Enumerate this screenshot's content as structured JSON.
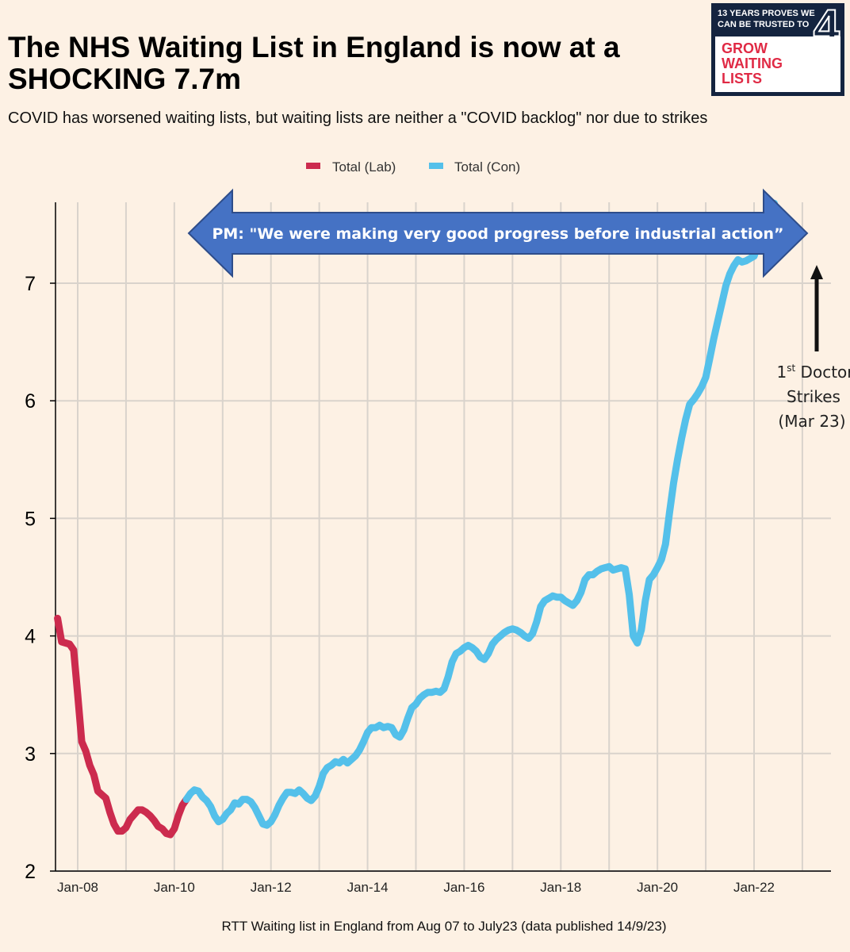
{
  "header": {
    "title": "The NHS Waiting List in England is now at a SHOCKING 7.7m",
    "subtitle": "COVID has worsened waiting lists, but waiting lists are neither a \"COVID backlog\" nor due to strikes"
  },
  "logo": {
    "top_text": "13 YEARS PROVES WE CAN BE TRUSTED TO",
    "number": "4",
    "words": "GROW\nWAITING\nLISTS"
  },
  "footer": "RTT Waiting list in England from Aug 07 to July23 (data published 14/9/23)",
  "annotations": {
    "arrow_text": "PM: \"We were making very good progress before industrial action”",
    "strike_label_1": "1",
    "strike_label_sup": "st",
    "strike_label_2": " Doctor",
    "strike_label_3": "Strikes",
    "strike_label_4": "(Mar 23)"
  },
  "colors": {
    "lab": "#cc2b4e",
    "con": "#54c0ea",
    "arrow_fill": "#4572c4",
    "arrow_stroke": "#2e4d8a",
    "grid": "#d9d3cc",
    "background": "#fdf1e4"
  },
  "chart_data": {
    "type": "line",
    "title": "The NHS Waiting List in England is now at a SHOCKING 7.7m",
    "xlabel": "",
    "ylabel": "",
    "ylim": [
      2,
      7.7
    ],
    "yticks": [
      "2",
      "3",
      "4",
      "5",
      "6",
      "7"
    ],
    "xticks": [
      "Jan-08",
      "Jan-10",
      "Jan-12",
      "Jan-14",
      "Jan-16",
      "Jan-18",
      "Jan-20",
      "Jan-22"
    ],
    "grid": true,
    "legend_position": "top-center",
    "series": [
      {
        "name": "Total (Lab)",
        "points": [
          [
            "2007-08",
            4.15
          ],
          [
            "2007-09",
            3.95
          ],
          [
            "2007-11",
            3.93
          ],
          [
            "2007-12",
            3.88
          ],
          [
            "2008-01",
            3.5
          ],
          [
            "2008-02",
            3.1
          ],
          [
            "2008-03",
            3.02
          ],
          [
            "2008-04",
            2.9
          ],
          [
            "2008-05",
            2.82
          ],
          [
            "2008-06",
            2.68
          ],
          [
            "2008-07",
            2.65
          ],
          [
            "2008-08",
            2.62
          ],
          [
            "2008-09",
            2.5
          ],
          [
            "2008-10",
            2.4
          ],
          [
            "2008-11",
            2.34
          ],
          [
            "2008-12",
            2.34
          ],
          [
            "2009-01",
            2.37
          ],
          [
            "2009-02",
            2.44
          ],
          [
            "2009-03",
            2.48
          ],
          [
            "2009-04",
            2.52
          ],
          [
            "2009-05",
            2.52
          ],
          [
            "2009-06",
            2.5
          ],
          [
            "2009-07",
            2.47
          ],
          [
            "2009-08",
            2.43
          ],
          [
            "2009-09",
            2.38
          ],
          [
            "2009-10",
            2.36
          ],
          [
            "2009-11",
            2.32
          ],
          [
            "2009-12",
            2.31
          ],
          [
            "2010-01",
            2.36
          ],
          [
            "2010-02",
            2.47
          ],
          [
            "2010-03",
            2.56
          ],
          [
            "2010-04",
            2.61
          ]
        ]
      },
      {
        "name": "Total (Con)",
        "points": [
          [
            "2010-05",
            2.66
          ],
          [
            "2010-06",
            2.69
          ],
          [
            "2010-07",
            2.68
          ],
          [
            "2010-08",
            2.63
          ],
          [
            "2010-09",
            2.6
          ],
          [
            "2010-10",
            2.55
          ],
          [
            "2010-11",
            2.47
          ],
          [
            "2010-12",
            2.42
          ],
          [
            "2011-01",
            2.44
          ],
          [
            "2011-02",
            2.49
          ],
          [
            "2011-03",
            2.52
          ],
          [
            "2011-04",
            2.58
          ],
          [
            "2011-05",
            2.57
          ],
          [
            "2011-06",
            2.61
          ],
          [
            "2011-07",
            2.61
          ],
          [
            "2011-08",
            2.59
          ],
          [
            "2011-09",
            2.54
          ],
          [
            "2011-10",
            2.47
          ],
          [
            "2011-11",
            2.4
          ],
          [
            "2011-12",
            2.39
          ],
          [
            "2012-01",
            2.42
          ],
          [
            "2012-02",
            2.48
          ],
          [
            "2012-03",
            2.56
          ],
          [
            "2012-04",
            2.62
          ],
          [
            "2012-05",
            2.67
          ],
          [
            "2012-06",
            2.67
          ],
          [
            "2012-07",
            2.66
          ],
          [
            "2012-08",
            2.69
          ],
          [
            "2012-09",
            2.66
          ],
          [
            "2012-10",
            2.62
          ],
          [
            "2012-11",
            2.6
          ],
          [
            "2012-12",
            2.64
          ],
          [
            "2013-01",
            2.72
          ],
          [
            "2013-02",
            2.83
          ],
          [
            "2013-03",
            2.88
          ],
          [
            "2013-04",
            2.9
          ],
          [
            "2013-05",
            2.93
          ],
          [
            "2013-06",
            2.92
          ],
          [
            "2013-07",
            2.95
          ],
          [
            "2013-08",
            2.92
          ],
          [
            "2013-09",
            2.95
          ],
          [
            "2013-10",
            2.98
          ],
          [
            "2013-11",
            3.03
          ],
          [
            "2013-12",
            3.1
          ],
          [
            "2014-01",
            3.18
          ],
          [
            "2014-02",
            3.22
          ],
          [
            "2014-03",
            3.22
          ],
          [
            "2014-04",
            3.24
          ],
          [
            "2014-05",
            3.22
          ],
          [
            "2014-06",
            3.23
          ],
          [
            "2014-07",
            3.22
          ],
          [
            "2014-08",
            3.16
          ],
          [
            "2014-09",
            3.14
          ],
          [
            "2014-10",
            3.2
          ],
          [
            "2014-11",
            3.3
          ],
          [
            "2014-12",
            3.39
          ],
          [
            "2015-01",
            3.42
          ],
          [
            "2015-02",
            3.47
          ],
          [
            "2015-03",
            3.5
          ],
          [
            "2015-04",
            3.52
          ],
          [
            "2015-05",
            3.52
          ],
          [
            "2015-06",
            3.53
          ],
          [
            "2015-07",
            3.52
          ],
          [
            "2015-08",
            3.55
          ],
          [
            "2015-09",
            3.65
          ],
          [
            "2015-10",
            3.78
          ],
          [
            "2015-11",
            3.85
          ],
          [
            "2015-12",
            3.87
          ],
          [
            "2016-01",
            3.9
          ],
          [
            "2016-02",
            3.92
          ],
          [
            "2016-03",
            3.9
          ],
          [
            "2016-04",
            3.87
          ],
          [
            "2016-05",
            3.82
          ],
          [
            "2016-06",
            3.8
          ],
          [
            "2016-07",
            3.85
          ],
          [
            "2016-08",
            3.93
          ],
          [
            "2016-09",
            3.97
          ],
          [
            "2016-10",
            4.0
          ],
          [
            "2016-11",
            4.03
          ],
          [
            "2016-12",
            4.05
          ],
          [
            "2017-01",
            4.06
          ],
          [
            "2017-02",
            4.05
          ],
          [
            "2017-03",
            4.03
          ],
          [
            "2017-04",
            4.0
          ],
          [
            "2017-05",
            3.98
          ],
          [
            "2017-06",
            4.02
          ],
          [
            "2017-07",
            4.12
          ],
          [
            "2017-08",
            4.25
          ],
          [
            "2017-09",
            4.3
          ],
          [
            "2017-10",
            4.32
          ],
          [
            "2017-11",
            4.34
          ],
          [
            "2017-12",
            4.33
          ],
          [
            "2018-01",
            4.33
          ],
          [
            "2018-02",
            4.3
          ],
          [
            "2018-03",
            4.28
          ],
          [
            "2018-04",
            4.26
          ],
          [
            "2018-05",
            4.3
          ],
          [
            "2018-06",
            4.37
          ],
          [
            "2018-07",
            4.48
          ],
          [
            "2018-08",
            4.52
          ],
          [
            "2018-09",
            4.52
          ],
          [
            "2018-10",
            4.55
          ],
          [
            "2018-11",
            4.57
          ],
          [
            "2018-12",
            4.58
          ],
          [
            "2019-01",
            4.59
          ],
          [
            "2019-02",
            4.56
          ],
          [
            "2019-03",
            4.57
          ],
          [
            "2019-04",
            4.58
          ],
          [
            "2019-05",
            4.57
          ],
          [
            "2019-06",
            4.35
          ],
          [
            "2019-07",
            4.0
          ],
          [
            "2019-08",
            3.94
          ],
          [
            "2019-09",
            4.05
          ],
          [
            "2019-10",
            4.3
          ],
          [
            "2019-11",
            4.48
          ],
          [
            "2019-12",
            4.52
          ],
          [
            "2020-01",
            4.58
          ],
          [
            "2020-02",
            4.65
          ],
          [
            "2020-03",
            4.78
          ],
          [
            "2020-04",
            5.05
          ],
          [
            "2020-05",
            5.3
          ],
          [
            "2020-06",
            5.5
          ],
          [
            "2020-07",
            5.68
          ],
          [
            "2020-08",
            5.84
          ],
          [
            "2020-09",
            5.97
          ],
          [
            "2020-10",
            6.01
          ],
          [
            "2020-11",
            6.06
          ],
          [
            "2020-12",
            6.12
          ],
          [
            "2021-01",
            6.2
          ],
          [
            "2021-02",
            6.36
          ],
          [
            "2021-03",
            6.53
          ],
          [
            "2021-04",
            6.68
          ],
          [
            "2021-05",
            6.83
          ],
          [
            "2021-06",
            6.98
          ],
          [
            "2021-07",
            7.08
          ],
          [
            "2021-08",
            7.15
          ],
          [
            "2021-09",
            7.2
          ],
          [
            "2021-10",
            7.18
          ],
          [
            "2021-11",
            7.19
          ],
          [
            "2021-12",
            7.21
          ],
          [
            "2022-01",
            7.23
          ],
          [
            "2022-02",
            7.33
          ],
          [
            "2022-03",
            7.4
          ],
          [
            "2022-04",
            7.45
          ],
          [
            "2022-05",
            7.53
          ],
          [
            "2022-06",
            7.68
          ]
        ]
      }
    ]
  }
}
